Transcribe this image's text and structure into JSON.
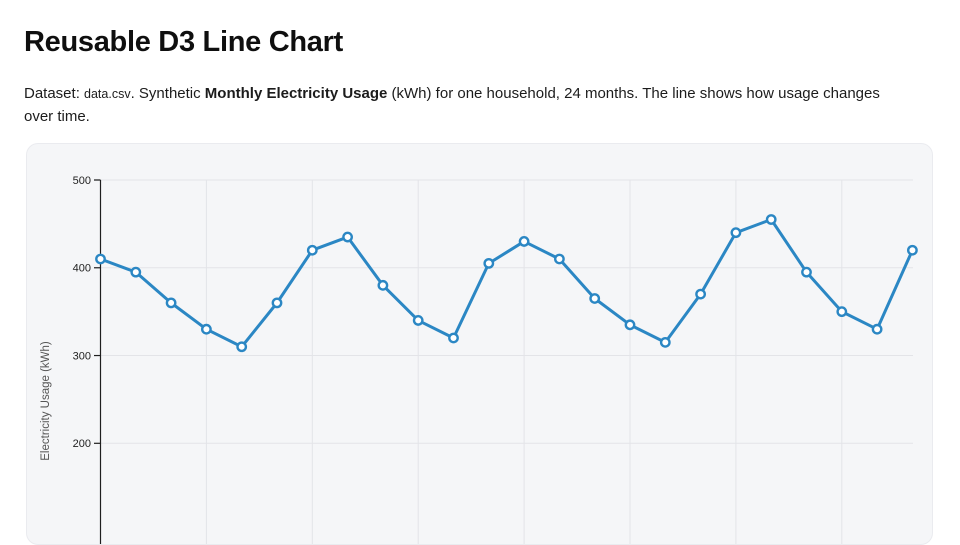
{
  "page": {
    "title": "Reusable D3 Line Chart",
    "description": {
      "prefix": "Dataset: ",
      "code": "data.csv",
      "mid": ". Synthetic ",
      "bold": "Monthly Electricity Usage",
      "suffix": " (kWh) for one household, 24 months. The line shows how usage changes over time."
    }
  },
  "chart_data": {
    "type": "line",
    "title": "",
    "xlabel": "",
    "ylabel": "Electricity Usage (kWh)",
    "x": [
      1,
      2,
      3,
      4,
      5,
      6,
      7,
      8,
      9,
      10,
      11,
      12,
      13,
      14,
      15,
      16,
      17,
      18,
      19,
      20,
      21,
      22,
      23,
      24
    ],
    "values": [
      410,
      395,
      360,
      330,
      310,
      360,
      420,
      435,
      380,
      340,
      320,
      405,
      430,
      410,
      365,
      335,
      315,
      370,
      440,
      455,
      395,
      350,
      330,
      420
    ],
    "series_name": "Monthly Electricity Usage (kWh)",
    "n_points": 24,
    "y_ticks_visible": [
      500,
      400,
      300,
      200
    ],
    "y_axis_max": 500,
    "ylim_visible": [
      135,
      500
    ],
    "x_gridlines_at_months": [
      4,
      7,
      10,
      13,
      16,
      19,
      22
    ],
    "grid": true,
    "legend": "none",
    "marker": "open-circle",
    "colors": {
      "line": "#2b87c4",
      "marker_fill": "#ffffff",
      "grid": "#e3e4e8",
      "axis": "#1f1f1f",
      "tick_label": "#222222",
      "axis_title": "#555555",
      "card_background": "#f5f6f8",
      "card_border": "#eaebef"
    }
  }
}
